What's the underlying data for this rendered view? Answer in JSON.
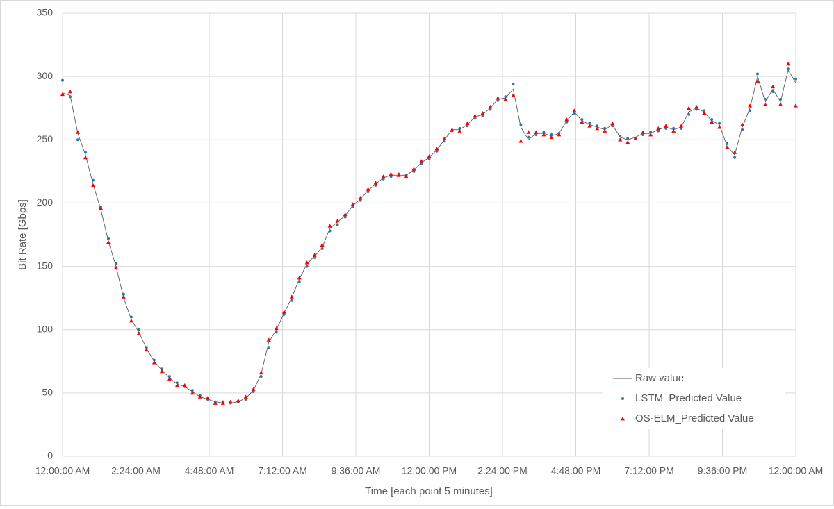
{
  "chart_data": {
    "type": "line",
    "xlabel": "Time [each point 5 minutes]",
    "ylabel": "Bit Rate [Gbps]",
    "x": [
      0,
      0.25,
      0.5,
      0.75,
      1,
      1.25,
      1.5,
      1.75,
      2,
      2.25,
      2.5,
      2.75,
      3,
      3.25,
      3.5,
      3.75,
      4,
      4.25,
      4.5,
      4.75,
      5,
      5.25,
      5.5,
      5.75,
      6,
      6.25,
      6.5,
      6.75,
      7,
      7.25,
      7.5,
      7.75,
      8,
      8.25,
      8.5,
      8.75,
      9,
      9.25,
      9.5,
      9.75,
      10,
      10.25,
      10.5,
      10.75,
      11,
      11.25,
      11.5,
      11.75,
      12,
      12.25,
      12.5,
      12.75,
      13,
      13.25,
      13.5,
      13.75,
      14,
      14.25,
      14.5,
      14.75,
      15,
      15.25,
      15.5,
      15.75,
      16,
      16.25,
      16.5,
      16.75,
      17,
      17.25,
      17.5,
      17.75,
      18,
      18.25,
      18.5,
      18.75,
      19,
      19.25,
      19.5,
      19.75,
      20,
      20.25,
      20.5,
      20.75,
      21,
      21.25,
      21.5,
      21.75,
      22,
      22.25,
      22.5,
      22.75,
      23,
      23.25,
      23.5,
      23.75,
      24
    ],
    "series": [
      {
        "name": "Raw value",
        "color": "#595959",
        "marker": "line",
        "values": [
          287,
          285,
          255,
          238,
          215,
          195,
          170,
          150,
          125,
          108,
          98,
          85,
          75,
          68,
          62,
          57,
          55,
          51,
          47,
          45,
          43,
          42,
          42,
          43,
          46,
          52,
          65,
          90,
          100,
          113,
          125,
          140,
          152,
          158,
          165,
          180,
          185,
          190,
          198,
          203,
          210,
          215,
          220,
          222,
          222,
          222,
          226,
          232,
          236,
          242,
          250,
          258,
          258,
          262,
          268,
          270,
          275,
          282,
          283,
          290,
          260,
          250,
          255,
          255,
          253,
          255,
          265,
          272,
          265,
          262,
          260,
          258,
          262,
          252,
          250,
          252,
          255,
          255,
          258,
          260,
          258,
          260,
          272,
          275,
          272,
          265,
          262,
          245,
          238,
          260,
          275,
          300,
          280,
          290,
          280,
          305,
          295
        ]
      },
      {
        "name": "LSTM_Predicted Value",
        "color": "#2e75b6",
        "marker": "circle",
        "values": [
          297,
          284,
          250,
          240,
          218,
          197,
          172,
          152,
          128,
          110,
          100,
          86,
          76,
          69,
          63,
          58,
          55,
          52,
          48,
          45,
          43,
          43,
          42,
          43,
          45,
          51,
          63,
          86,
          98,
          112,
          123,
          138,
          150,
          157,
          164,
          178,
          183,
          189,
          197,
          202,
          209,
          214,
          219,
          221,
          223,
          222,
          225,
          231,
          235,
          241,
          249,
          257,
          259,
          261,
          267,
          269,
          274,
          281,
          284,
          294,
          262,
          252,
          254,
          256,
          254,
          255,
          264,
          271,
          266,
          263,
          261,
          259,
          261,
          253,
          251,
          251,
          254,
          256,
          257,
          259,
          259,
          259,
          270,
          274,
          273,
          266,
          263,
          247,
          236,
          258,
          273,
          302,
          282,
          288,
          282,
          306,
          298
        ]
      },
      {
        "name": "OS-ELM_Predicted Value",
        "color": "#ff0000",
        "marker": "triangle",
        "values": [
          286,
          288,
          256,
          236,
          214,
          196,
          169,
          149,
          126,
          107,
          97,
          84,
          74,
          67,
          61,
          56,
          56,
          50,
          47,
          46,
          42,
          42,
          43,
          44,
          47,
          53,
          66,
          92,
          101,
          114,
          126,
          141,
          153,
          159,
          167,
          182,
          186,
          191,
          199,
          204,
          211,
          216,
          221,
          223,
          222,
          221,
          227,
          233,
          237,
          243,
          251,
          258,
          257,
          263,
          269,
          271,
          276,
          283,
          282,
          285,
          249,
          256,
          256,
          254,
          252,
          254,
          266,
          273,
          264,
          261,
          259,
          257,
          263,
          250,
          248,
          251,
          256,
          254,
          259,
          261,
          257,
          261,
          275,
          276,
          271,
          264,
          260,
          244,
          240,
          262,
          277,
          296,
          278,
          292,
          278,
          310,
          277
        ]
      }
    ],
    "xlim": [
      0,
      24
    ],
    "xticks": [
      {
        "value": 0,
        "label": "12:00:00 AM"
      },
      {
        "value": 2.4,
        "label": "2:24:00 AM"
      },
      {
        "value": 4.8,
        "label": "4:48:00 AM"
      },
      {
        "value": 7.2,
        "label": "7:12:00 AM"
      },
      {
        "value": 9.6,
        "label": "9:36:00 AM"
      },
      {
        "value": 12,
        "label": "12:00:00 PM"
      },
      {
        "value": 14.4,
        "label": "2:24:00 PM"
      },
      {
        "value": 16.8,
        "label": "4:48:00 PM"
      },
      {
        "value": 19.2,
        "label": "7:12:00 PM"
      },
      {
        "value": 21.6,
        "label": "9:36:00 PM"
      },
      {
        "value": 24,
        "label": "12:00:00 AM"
      }
    ],
    "ylim": [
      0,
      350
    ],
    "yticks": [
      0,
      50,
      100,
      150,
      200,
      250,
      300,
      350
    ],
    "grid": true,
    "legend": "lower right"
  }
}
